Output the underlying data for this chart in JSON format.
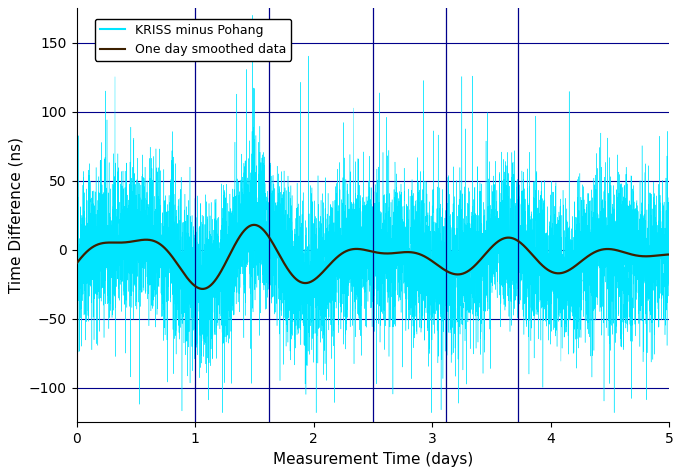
{
  "xlabel": "Measurement Time (days)",
  "ylabel": "Time Difference (ns)",
  "xlim": [
    0,
    5
  ],
  "ylim": [
    -125,
    175
  ],
  "yticks": [
    -100,
    -50,
    0,
    50,
    100,
    150
  ],
  "xticks": [
    0,
    1,
    2,
    3,
    4,
    5
  ],
  "bg_color": "#ffffff",
  "grid_color": "#00008b",
  "cyan_color": "#00e5ff",
  "smooth_color": "#3d2000",
  "vline_color": "#00008b",
  "vline_x": [
    1.0,
    1.62,
    2.5,
    3.12,
    3.72
  ],
  "legend_labels": [
    "KRISS minus Pohang",
    "One day smoothed data"
  ],
  "n_points": 8000
}
